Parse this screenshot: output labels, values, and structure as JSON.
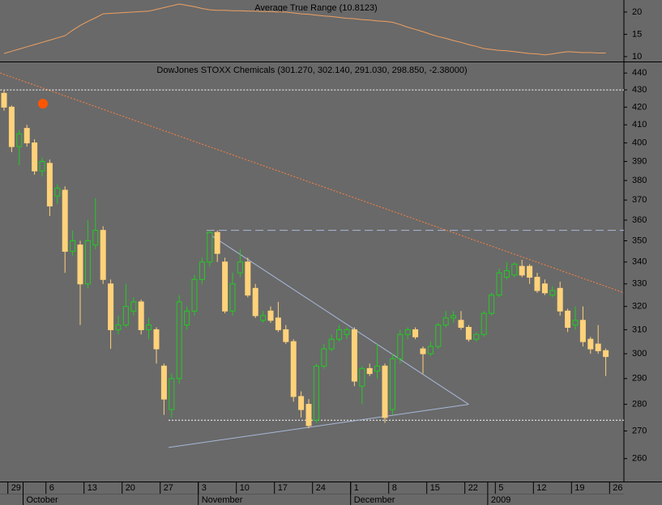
{
  "chart_data": {
    "type": "candlestick",
    "title": "DowJones STOXX Chemicals (301.270, 302.140, 291.030, 298.850, -2.38000)",
    "categories": [
      null,
      "29",
      null,
      null,
      null,
      null,
      "6",
      null,
      null,
      null,
      null,
      "13",
      null,
      null,
      null,
      null,
      "20",
      null,
      null,
      null,
      null,
      "27",
      null,
      null,
      null,
      null,
      "3",
      null,
      null,
      null,
      null,
      "10",
      null,
      null,
      null,
      null,
      "17",
      null,
      null,
      null,
      null,
      "24",
      null,
      null,
      null,
      null,
      "1",
      null,
      null,
      null,
      null,
      "8",
      null,
      null,
      null,
      null,
      "15",
      null,
      null,
      null,
      null,
      "22",
      null,
      null,
      null,
      "5",
      null,
      null,
      null,
      null,
      "12",
      null,
      null,
      null,
      null,
      "19",
      null,
      null,
      null,
      null,
      "26"
    ],
    "months": [
      null,
      null,
      null,
      "October",
      null,
      null,
      null,
      null,
      null,
      null,
      null,
      null,
      null,
      null,
      null,
      null,
      null,
      null,
      null,
      null,
      null,
      null,
      null,
      null,
      null,
      null,
      "November",
      null,
      null,
      null,
      null,
      null,
      null,
      null,
      null,
      null,
      null,
      null,
      null,
      null,
      null,
      null,
      null,
      null,
      null,
      null,
      "December",
      null,
      null,
      null,
      null,
      null,
      null,
      null,
      null,
      null,
      null,
      null,
      null,
      null,
      null,
      null,
      null,
      null,
      "2009",
      null,
      null,
      null,
      null,
      null,
      null,
      null,
      null,
      null,
      null,
      null,
      null,
      null,
      null,
      null,
      null
    ],
    "open": [
      428,
      420,
      398,
      408,
      400,
      385,
      389,
      372,
      375,
      345,
      348,
      330,
      348,
      355,
      330,
      310,
      312,
      318,
      322,
      310,
      310,
      295,
      278,
      290,
      312,
      318,
      332,
      340,
      354,
      340,
      318,
      335,
      340,
      328,
      314,
      318,
      315,
      310,
      305,
      283,
      280,
      274,
      295,
      302,
      306,
      308,
      310,
      287,
      294,
      293,
      295,
      278,
      298,
      308,
      310,
      302,
      300,
      303,
      312,
      315,
      314,
      311,
      306,
      308,
      317,
      325,
      333,
      334,
      338,
      338,
      333,
      330,
      325,
      328,
      318,
      312,
      314,
      306,
      304,
      301.27,
      null
    ],
    "high": [
      430,
      421,
      407,
      410,
      402,
      392,
      391,
      378,
      377,
      355,
      350,
      360,
      371,
      357,
      332,
      316,
      330,
      324,
      323,
      315,
      311,
      296,
      292,
      325,
      320,
      334,
      342,
      355,
      355,
      342,
      335,
      346,
      342,
      330,
      318,
      320,
      322,
      312,
      306,
      285,
      282,
      296,
      304,
      308,
      312,
      311,
      311,
      295,
      296,
      304,
      296,
      300,
      310,
      311,
      311,
      303,
      305,
      313,
      318,
      318,
      318,
      312,
      309,
      318,
      326,
      337,
      340,
      340,
      341,
      339,
      335,
      332,
      329,
      331,
      319,
      320,
      320,
      307,
      312,
      302.14,
      null
    ],
    "low": [
      418,
      395,
      388,
      398,
      383,
      382,
      362,
      368,
      335,
      343,
      312,
      328,
      346,
      330,
      302,
      308,
      311,
      316,
      308,
      306,
      296,
      276,
      275,
      288,
      310,
      316,
      330,
      338,
      340,
      317,
      316,
      333,
      324,
      315,
      313,
      313,
      309,
      304,
      281,
      275,
      271,
      273,
      294,
      301,
      305,
      306,
      287,
      280,
      291,
      290,
      273,
      276,
      296,
      306,
      306,
      292,
      299,
      302,
      311,
      313,
      310,
      305,
      305,
      307,
      316,
      324,
      332,
      333,
      333,
      330,
      326,
      325,
      324,
      316,
      309,
      310,
      303,
      300,
      300,
      291.03,
      null
    ],
    "close": [
      420,
      398,
      405,
      400,
      385,
      390,
      367,
      376,
      345,
      350,
      330,
      350,
      355,
      332,
      310,
      312,
      320,
      322,
      310,
      312,
      302,
      282,
      290,
      322,
      318,
      332,
      340,
      354,
      344,
      318,
      330,
      340,
      325,
      316,
      316,
      314,
      310,
      305,
      283,
      278,
      272,
      295,
      302,
      306,
      310,
      310,
      289,
      294,
      292,
      295,
      275,
      298,
      308,
      310,
      307,
      300,
      303,
      312,
      315,
      316,
      311,
      306,
      308,
      317,
      325,
      335,
      336,
      339,
      334,
      333,
      327,
      326,
      327,
      318,
      311,
      314,
      305,
      302,
      301.23,
      298.85,
      null
    ],
    "up_color": "#22cc22",
    "down_color": "#ffd27a",
    "log": true,
    "ylim": [
      252,
      446
    ],
    "yticks": [
      260,
      270,
      280,
      290,
      300,
      310,
      320,
      330,
      340,
      350,
      360,
      370,
      380,
      390,
      400,
      410,
      420,
      430,
      440
    ],
    "lines": [
      {
        "x": [
          -0.5,
          81.4
        ],
        "y": [
          440,
          326
        ],
        "color": "#ff7f3f",
        "dash": "2,2"
      },
      {
        "x": [
          -0.5,
          81.4
        ],
        "y": [
          430,
          430
        ],
        "color": "#ffffff",
        "dash": "2,2"
      },
      {
        "x": [
          26.6,
          81.4
        ],
        "y": [
          355,
          355
        ],
        "color": "#a8b8d8",
        "dash": "10,5"
      },
      {
        "x": [
          21.6,
          81.4
        ],
        "y": [
          274,
          274
        ],
        "color": "#ffffff",
        "dash": "2,2"
      },
      {
        "x": [
          26.6,
          61
        ],
        "y": [
          354,
          280
        ],
        "color": "#a8b8d8"
      },
      {
        "x": [
          21.6,
          61
        ],
        "y": [
          264,
          280
        ],
        "color": "#a8b8d8"
      }
    ],
    "marker": {
      "x": 5.1,
      "y": 422,
      "color": "#ff5500"
    },
    "indicator": {
      "title": "Average True Range (10.8123)",
      "color": "#f0a060",
      "values": [
        10.7,
        11.2,
        11.7,
        12.2,
        12.7,
        13.2,
        13.7,
        14.2,
        14.7,
        15.9,
        17.0,
        17.9,
        18.7,
        19.6,
        19.7,
        19.8,
        19.9,
        20.0,
        20.1,
        20.2,
        20.6,
        21.0,
        21.4,
        21.8,
        21.5,
        21.2,
        20.8,
        20.5,
        20.4,
        20.4,
        20.3,
        20.3,
        20.2,
        20.2,
        20.1,
        20.1,
        20.0,
        20.0,
        19.8,
        19.6,
        19.5,
        19.3,
        19.1,
        19.0,
        18.8,
        18.6,
        18.5,
        18.3,
        18.2,
        18.0,
        17.9,
        17.7,
        17.2,
        16.6,
        16.1,
        15.6,
        15.0,
        14.5,
        14.1,
        13.6,
        13.2,
        12.7,
        12.3,
        11.8,
        11.6,
        11.4,
        11.3,
        11.1,
        10.9,
        10.7,
        10.6,
        10.4,
        10.6,
        10.9,
        11.1,
        11.0,
        10.9,
        10.9,
        10.8,
        10.81,
        null
      ],
      "ylim": [
        8.9,
        22.7
      ],
      "yticks": [
        10,
        15,
        20
      ]
    }
  }
}
